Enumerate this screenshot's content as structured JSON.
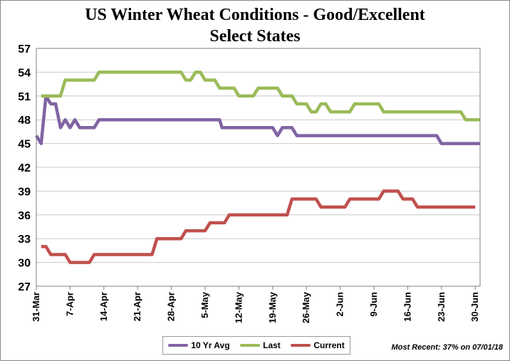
{
  "chart_data": {
    "type": "line",
    "title": "US Winter Wheat Conditions - Good/Excellent",
    "subtitle": "Select States",
    "xlabel": "",
    "ylabel": "",
    "ylim": [
      27,
      57
    ],
    "yticks": [
      27,
      30,
      33,
      36,
      39,
      42,
      45,
      48,
      51,
      54,
      57
    ],
    "x_tick_labels": [
      "31-Mar",
      "7-Apr",
      "14-Apr",
      "21-Apr",
      "28-Apr",
      "5-May",
      "12-May",
      "19-May",
      "26-May",
      "2-Jun",
      "9-Jun",
      "16-Jun",
      "23-Jun",
      "30-Jun"
    ],
    "x_range_days": [
      0,
      92
    ],
    "grid": true,
    "legend_position": "bottom-center",
    "series": [
      {
        "name": "10 Yr Avg",
        "color": "#8064A2",
        "points": [
          [
            0,
            46
          ],
          [
            1,
            45
          ],
          [
            2,
            51
          ],
          [
            3,
            50
          ],
          [
            4,
            50
          ],
          [
            5,
            47
          ],
          [
            6,
            48
          ],
          [
            7,
            47
          ],
          [
            8,
            48
          ],
          [
            9,
            47
          ],
          [
            12,
            47
          ],
          [
            13,
            48
          ],
          [
            18,
            48
          ],
          [
            21,
            48
          ],
          [
            35,
            48
          ],
          [
            38,
            48
          ],
          [
            38.5,
            47
          ],
          [
            45,
            47
          ],
          [
            49,
            47
          ],
          [
            50,
            46
          ],
          [
            51,
            47
          ],
          [
            53,
            47
          ],
          [
            54,
            46
          ],
          [
            61,
            46
          ],
          [
            69,
            46
          ],
          [
            78,
            46
          ],
          [
            83,
            46
          ],
          [
            84,
            45
          ],
          [
            92,
            45
          ]
        ]
      },
      {
        "name": "Last",
        "color": "#9BBB59",
        "points": [
          [
            1,
            51
          ],
          [
            2,
            51
          ],
          [
            5,
            51
          ],
          [
            6,
            53
          ],
          [
            12,
            53
          ],
          [
            13,
            54
          ],
          [
            30,
            54
          ],
          [
            31,
            53
          ],
          [
            32,
            53
          ],
          [
            33,
            54
          ],
          [
            34,
            54
          ],
          [
            35,
            53
          ],
          [
            37,
            53
          ],
          [
            38,
            52
          ],
          [
            41,
            52
          ],
          [
            42,
            51
          ],
          [
            45,
            51
          ],
          [
            46,
            52
          ],
          [
            50,
            52
          ],
          [
            51,
            51
          ],
          [
            53,
            51
          ],
          [
            54,
            50
          ],
          [
            56,
            50
          ],
          [
            57,
            49
          ],
          [
            58,
            49
          ],
          [
            59,
            50
          ],
          [
            60,
            50
          ],
          [
            61,
            49
          ],
          [
            65,
            49
          ],
          [
            66,
            50
          ],
          [
            71,
            50
          ],
          [
            72,
            49
          ],
          [
            82,
            49
          ],
          [
            88,
            49
          ],
          [
            89,
            48
          ],
          [
            92,
            48
          ]
        ]
      },
      {
        "name": "Current",
        "color": "#C0504D",
        "points": [
          [
            1,
            32
          ],
          [
            2,
            32
          ],
          [
            3,
            31
          ],
          [
            6,
            31
          ],
          [
            7,
            30
          ],
          [
            11,
            30
          ],
          [
            12,
            31
          ],
          [
            24,
            31
          ],
          [
            25,
            33
          ],
          [
            30,
            33
          ],
          [
            31,
            34
          ],
          [
            35,
            34
          ],
          [
            36,
            35
          ],
          [
            39,
            35
          ],
          [
            40,
            36
          ],
          [
            52,
            36
          ],
          [
            53,
            38
          ],
          [
            58,
            38
          ],
          [
            59,
            37
          ],
          [
            64,
            37
          ],
          [
            65,
            38
          ],
          [
            71,
            38
          ],
          [
            72,
            39
          ],
          [
            75,
            39
          ],
          [
            76,
            38
          ],
          [
            78,
            38
          ],
          [
            79,
            37
          ],
          [
            86,
            37
          ],
          [
            91,
            37
          ]
        ]
      }
    ]
  },
  "footer": {
    "most_recent": "Most Recent: 37% on 07/01/18"
  }
}
